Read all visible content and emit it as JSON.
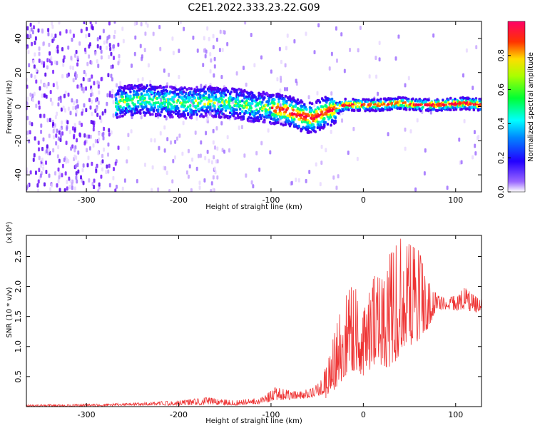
{
  "title": "C2E1.2022.333.23.22.G09",
  "chart_data": [
    {
      "type": "heatmap",
      "xlabel": "Height of straight line (km)",
      "ylabel": "Frequency (Hz)",
      "xlim": [
        -365,
        128
      ],
      "ylim": [
        -50,
        50
      ],
      "xticks": [
        -300,
        -200,
        -100,
        0,
        100
      ],
      "xtick_labels": [
        "-300",
        "-200",
        "-100",
        "0",
        "100"
      ],
      "yticks": [
        -40,
        -20,
        0,
        20,
        40
      ],
      "ytick_labels": [
        "-40",
        "-20",
        "0",
        "20",
        "40"
      ],
      "colorbar": {
        "label": "Normalized spectral amplitude",
        "range": [
          0,
          1
        ],
        "ticks": [
          0.0,
          0.2,
          0.4,
          0.6,
          0.8
        ],
        "tick_labels": [
          "0.0",
          "0.2",
          "0.4",
          "0.6",
          "0.8"
        ],
        "colormap": [
          "#ffffff",
          "#7f00ff",
          "#0000ff",
          "#00ffff",
          "#00ff00",
          "#ffff00",
          "#ff0000",
          "#ff0080"
        ]
      },
      "dominant_frequency_trace": [
        {
          "x": -265,
          "y": 3
        },
        {
          "x": -240,
          "y": 4
        },
        {
          "x": -215,
          "y": 3
        },
        {
          "x": -190,
          "y": 2
        },
        {
          "x": -165,
          "y": 3
        },
        {
          "x": -140,
          "y": 2
        },
        {
          "x": -120,
          "y": 0
        },
        {
          "x": -100,
          "y": -1
        },
        {
          "x": -85,
          "y": -2
        },
        {
          "x": -70,
          "y": -5
        },
        {
          "x": -55,
          "y": -7
        },
        {
          "x": -45,
          "y": -4
        },
        {
          "x": -35,
          "y": -2
        },
        {
          "x": -20,
          "y": 1
        },
        {
          "x": 0,
          "y": 1
        },
        {
          "x": 20,
          "y": 1
        },
        {
          "x": 40,
          "y": 2
        },
        {
          "x": 60,
          "y": 1
        },
        {
          "x": 80,
          "y": 1
        },
        {
          "x": 110,
          "y": 2
        },
        {
          "x": 128,
          "y": 1
        }
      ]
    },
    {
      "type": "line",
      "xlabel": "Height of straight line (km)",
      "ylabel": "SNR (10 * v/v)",
      "multiplier_label": "(x10⁴)",
      "xlim": [
        -365,
        128
      ],
      "ylim": [
        0,
        2.85
      ],
      "xticks": [
        -300,
        -200,
        -100,
        0,
        100
      ],
      "xtick_labels": [
        "-300",
        "-200",
        "-100",
        "0",
        "100"
      ],
      "yticks": [
        0.5,
        1.0,
        1.5,
        2.0,
        2.5
      ],
      "ytick_labels": [
        "0.5",
        "1.0",
        "1.5",
        "2.0",
        "2.5"
      ],
      "series": [
        {
          "color": "#ee3333",
          "envelope": [
            {
              "x": -365,
              "lo": 0.0,
              "hi": 0.03
            },
            {
              "x": -300,
              "lo": 0.0,
              "hi": 0.04
            },
            {
              "x": -250,
              "lo": 0.02,
              "hi": 0.06
            },
            {
              "x": -200,
              "lo": 0.02,
              "hi": 0.1
            },
            {
              "x": -170,
              "lo": 0.03,
              "hi": 0.15
            },
            {
              "x": -140,
              "lo": 0.02,
              "hi": 0.1
            },
            {
              "x": -110,
              "lo": 0.05,
              "hi": 0.15
            },
            {
              "x": -95,
              "lo": 0.1,
              "hi": 0.32
            },
            {
              "x": -75,
              "lo": 0.12,
              "hi": 0.25
            },
            {
              "x": -55,
              "lo": 0.15,
              "hi": 0.3
            },
            {
              "x": -45,
              "lo": 0.2,
              "hi": 0.45
            },
            {
              "x": -38,
              "lo": 0.1,
              "hi": 0.8
            },
            {
              "x": -30,
              "lo": 0.3,
              "hi": 1.3
            },
            {
              "x": -20,
              "lo": 0.5,
              "hi": 1.85
            },
            {
              "x": -10,
              "lo": 0.6,
              "hi": 2.05
            },
            {
              "x": 0,
              "lo": 0.5,
              "hi": 1.55
            },
            {
              "x": 10,
              "lo": 0.6,
              "hi": 2.1
            },
            {
              "x": 20,
              "lo": 0.7,
              "hi": 2.45
            },
            {
              "x": 30,
              "lo": 0.6,
              "hi": 2.55
            },
            {
              "x": 40,
              "lo": 0.9,
              "hi": 2.8
            },
            {
              "x": 50,
              "lo": 1.0,
              "hi": 2.7
            },
            {
              "x": 60,
              "lo": 1.1,
              "hi": 2.6
            },
            {
              "x": 70,
              "lo": 1.3,
              "hi": 2.1
            },
            {
              "x": 80,
              "lo": 1.62,
              "hi": 1.85
            },
            {
              "x": 90,
              "lo": 1.62,
              "hi": 1.8
            },
            {
              "x": 100,
              "lo": 1.6,
              "hi": 1.85
            },
            {
              "x": 110,
              "lo": 1.62,
              "hi": 1.98
            },
            {
              "x": 120,
              "lo": 1.55,
              "hi": 1.85
            },
            {
              "x": 128,
              "lo": 1.62,
              "hi": 1.78
            }
          ]
        }
      ]
    }
  ]
}
